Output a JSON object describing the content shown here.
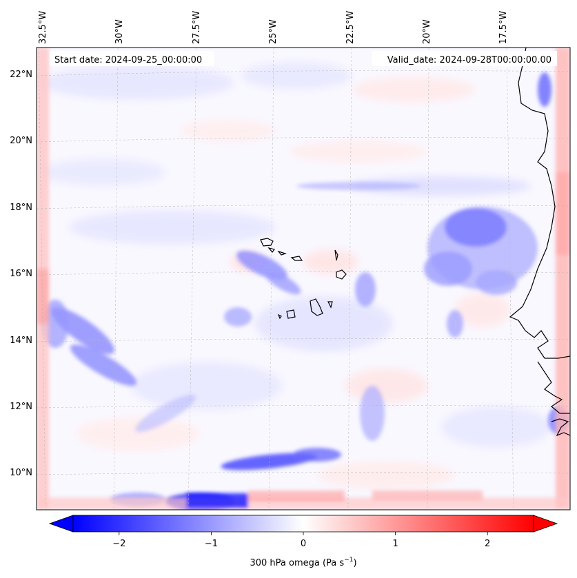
{
  "map": {
    "start_date": "Start date: 2024-09-25_00:00:00",
    "valid_date": "Valid_date: 2024-09-28T00:00:00.00",
    "lon_labels": [
      "32.5°W",
      "30°W",
      "27.5°W",
      "25°W",
      "22.5°W",
      "20°W",
      "17.5°W"
    ],
    "lat_labels": [
      "22°N",
      "20°N",
      "18°N",
      "16°N",
      "14°N",
      "12°N",
      "10°N"
    ],
    "colorbar": {
      "label": "300 hPa omega (Pa s",
      "label_sup": "−1",
      "label_end": ")",
      "ticks": [
        "−2",
        "−1",
        "0",
        "1",
        "2"
      ],
      "tick_values": [
        -2,
        -1,
        0,
        1,
        2
      ],
      "range": [
        -2.5,
        2.5
      ],
      "colormap": "bwr",
      "low_color": "#0000ff",
      "mid_color": "#ffffff",
      "high_color": "#ff0000"
    }
  }
}
